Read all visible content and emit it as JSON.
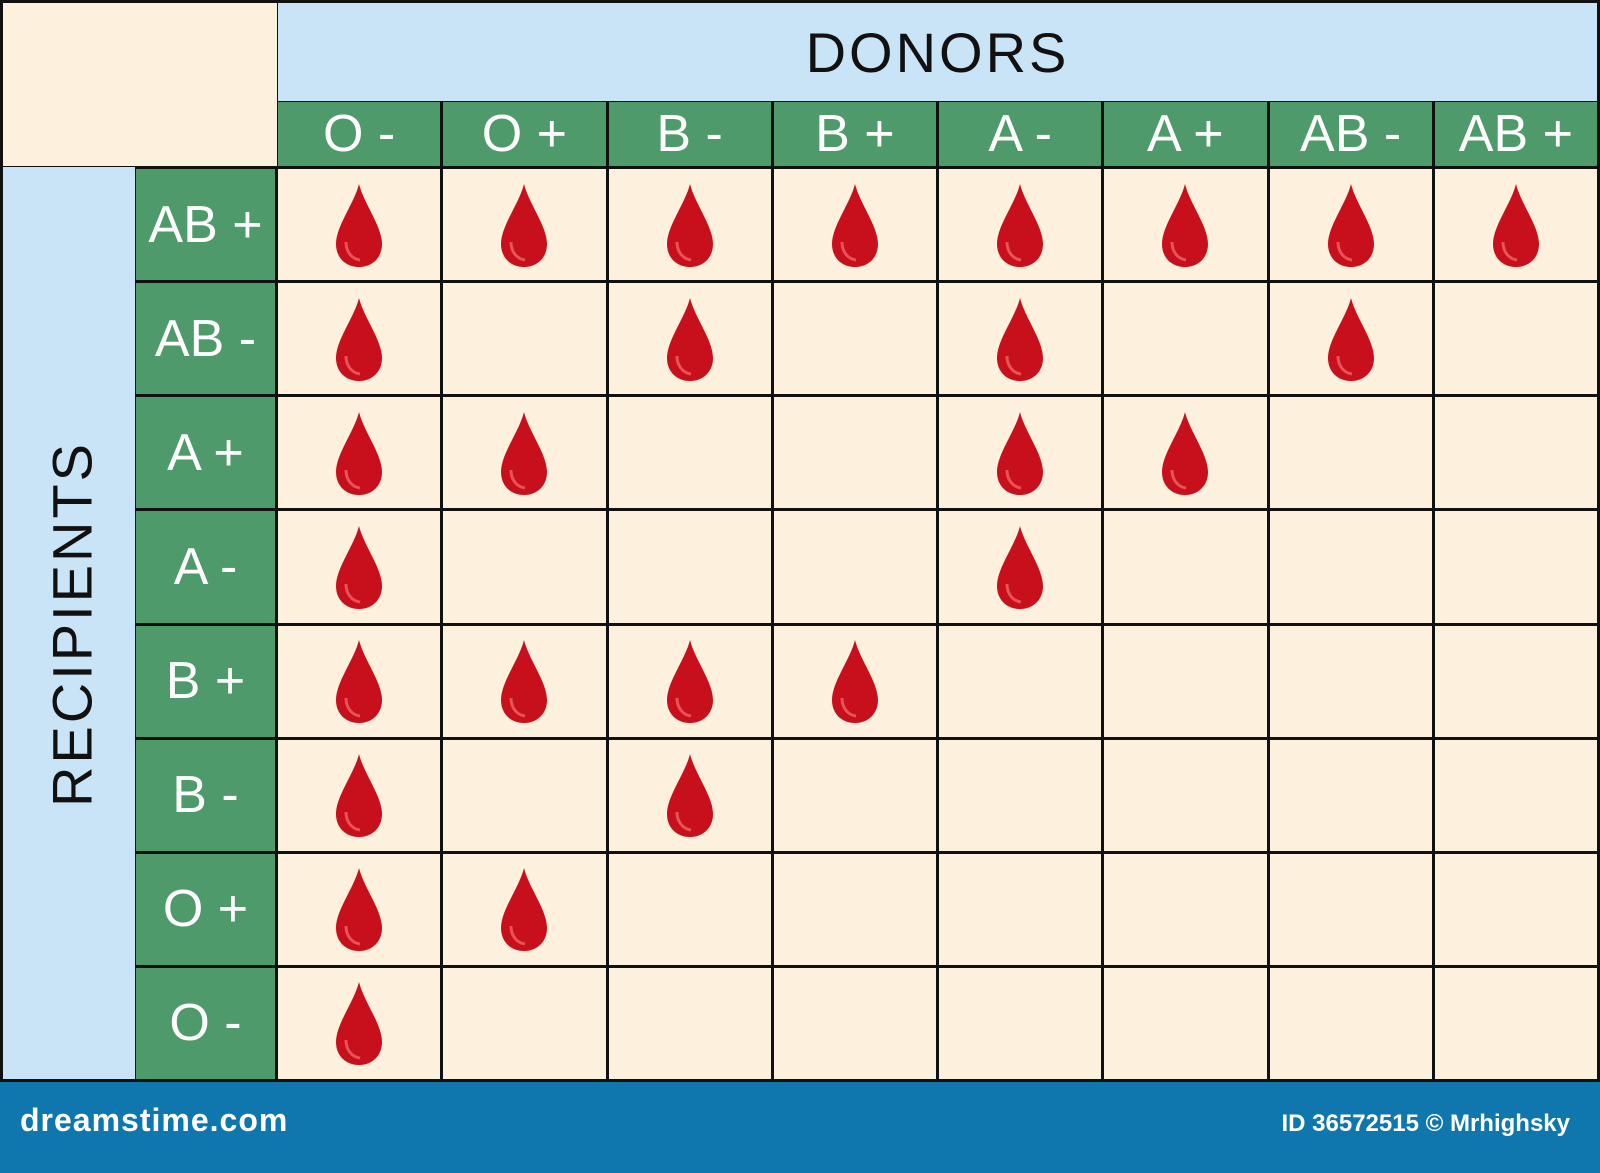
{
  "title": "DONORS",
  "side_title": "RECIPIENTS",
  "donors": [
    "O -",
    "O +",
    "B -",
    "B +",
    "A -",
    "A +",
    "AB -",
    "AB +"
  ],
  "recipients": [
    "AB +",
    "AB -",
    "A +",
    "A -",
    "B +",
    "B -",
    "O +",
    "O -"
  ],
  "compatible": [
    [
      1,
      1,
      1,
      1,
      1,
      1,
      1,
      1
    ],
    [
      1,
      0,
      1,
      0,
      1,
      0,
      1,
      0
    ],
    [
      1,
      1,
      0,
      0,
      1,
      1,
      0,
      0
    ],
    [
      1,
      0,
      0,
      0,
      1,
      0,
      0,
      0
    ],
    [
      1,
      1,
      1,
      1,
      0,
      0,
      0,
      0
    ],
    [
      1,
      0,
      1,
      0,
      0,
      0,
      0,
      0
    ],
    [
      1,
      1,
      0,
      0,
      0,
      0,
      0,
      0
    ],
    [
      1,
      0,
      0,
      0,
      0,
      0,
      0,
      0
    ]
  ],
  "colors": {
    "drop": "#c8101c",
    "header": "#4e9a6a",
    "band": "#c9e3f7",
    "cell": "#fdf0dd",
    "footer": "#0f77ae"
  },
  "footer": {
    "logo": "dreamstime.com",
    "credit": "ID 36572515 © Mrhighsky"
  }
}
